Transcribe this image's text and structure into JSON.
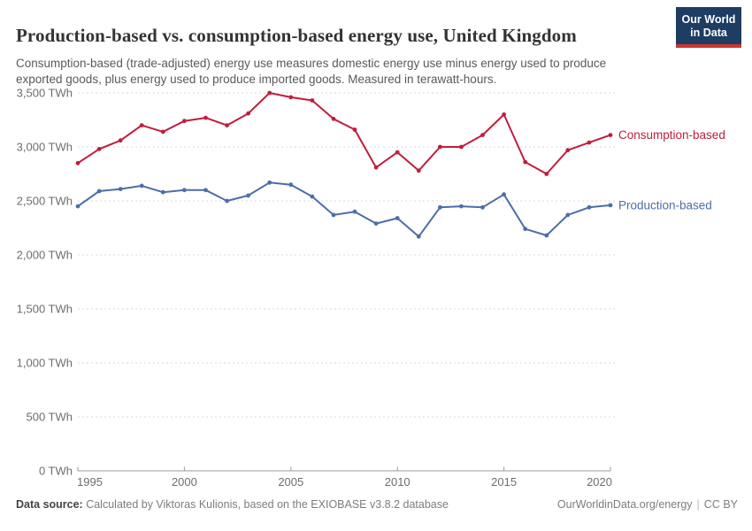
{
  "header": {
    "title": "Production-based vs. consumption-based energy use, United Kingdom",
    "subtitle": "Consumption-based (trade-adjusted) energy use measures domestic energy use minus energy used to produce exported goods, plus energy used to produce imported goods. Measured in terawatt-hours.",
    "logo": {
      "line1": "Our World",
      "line2": "in Data"
    }
  },
  "chart_data": {
    "type": "line",
    "title": "Production-based vs. consumption-based energy use, United Kingdom",
    "unit": "TWh",
    "x": [
      1995,
      1996,
      1997,
      1998,
      1999,
      2000,
      2001,
      2002,
      2003,
      2004,
      2005,
      2006,
      2007,
      2008,
      2009,
      2010,
      2011,
      2012,
      2013,
      2014,
      2015,
      2016,
      2017,
      2018,
      2019,
      2020
    ],
    "series": [
      {
        "name": "Consumption-based",
        "color": "#c11d3d",
        "values": [
          2850,
          2980,
          3060,
          3200,
          3140,
          3240,
          3270,
          3200,
          3310,
          3500,
          3460,
          3430,
          3260,
          3160,
          2810,
          2950,
          2780,
          3000,
          3000,
          3110,
          3300,
          2860,
          2750,
          2970,
          3040,
          3110
        ]
      },
      {
        "name": "Production-based",
        "color": "#4c6ea8",
        "values": [
          2450,
          2590,
          2610,
          2640,
          2580,
          2600,
          2600,
          2500,
          2550,
          2670,
          2650,
          2540,
          2370,
          2400,
          2290,
          2340,
          2170,
          2440,
          2450,
          2440,
          2560,
          2240,
          2180,
          2370,
          2440,
          2460
        ]
      }
    ],
    "ylim": [
      0,
      3500
    ],
    "yticks": [
      0,
      500,
      1000,
      1500,
      2000,
      2500,
      3000,
      3500
    ],
    "xticks": [
      1995,
      2000,
      2005,
      2010,
      2015,
      2020
    ],
    "grid": "horizontal-dashed",
    "legend_position": "end-of-line"
  },
  "footer": {
    "datasource_label": "Data source:",
    "datasource_text": " Calculated by Viktoras Kulionis, based on the EXIOBASE v3.8.2 database",
    "link": "OurWorldinData.org/energy",
    "separator": "|",
    "license": "CC BY"
  },
  "colors": {
    "accent_red": "#c11d3d",
    "accent_blue": "#4c6ea8",
    "grid": "#d9d9d9",
    "axis": "#999999",
    "tick_text": "#6e6e6e",
    "title_text": "#333333",
    "subtitle_text": "#5a5a5a",
    "logo_bg": "#1d3d63",
    "logo_strip": "#cf352e"
  }
}
